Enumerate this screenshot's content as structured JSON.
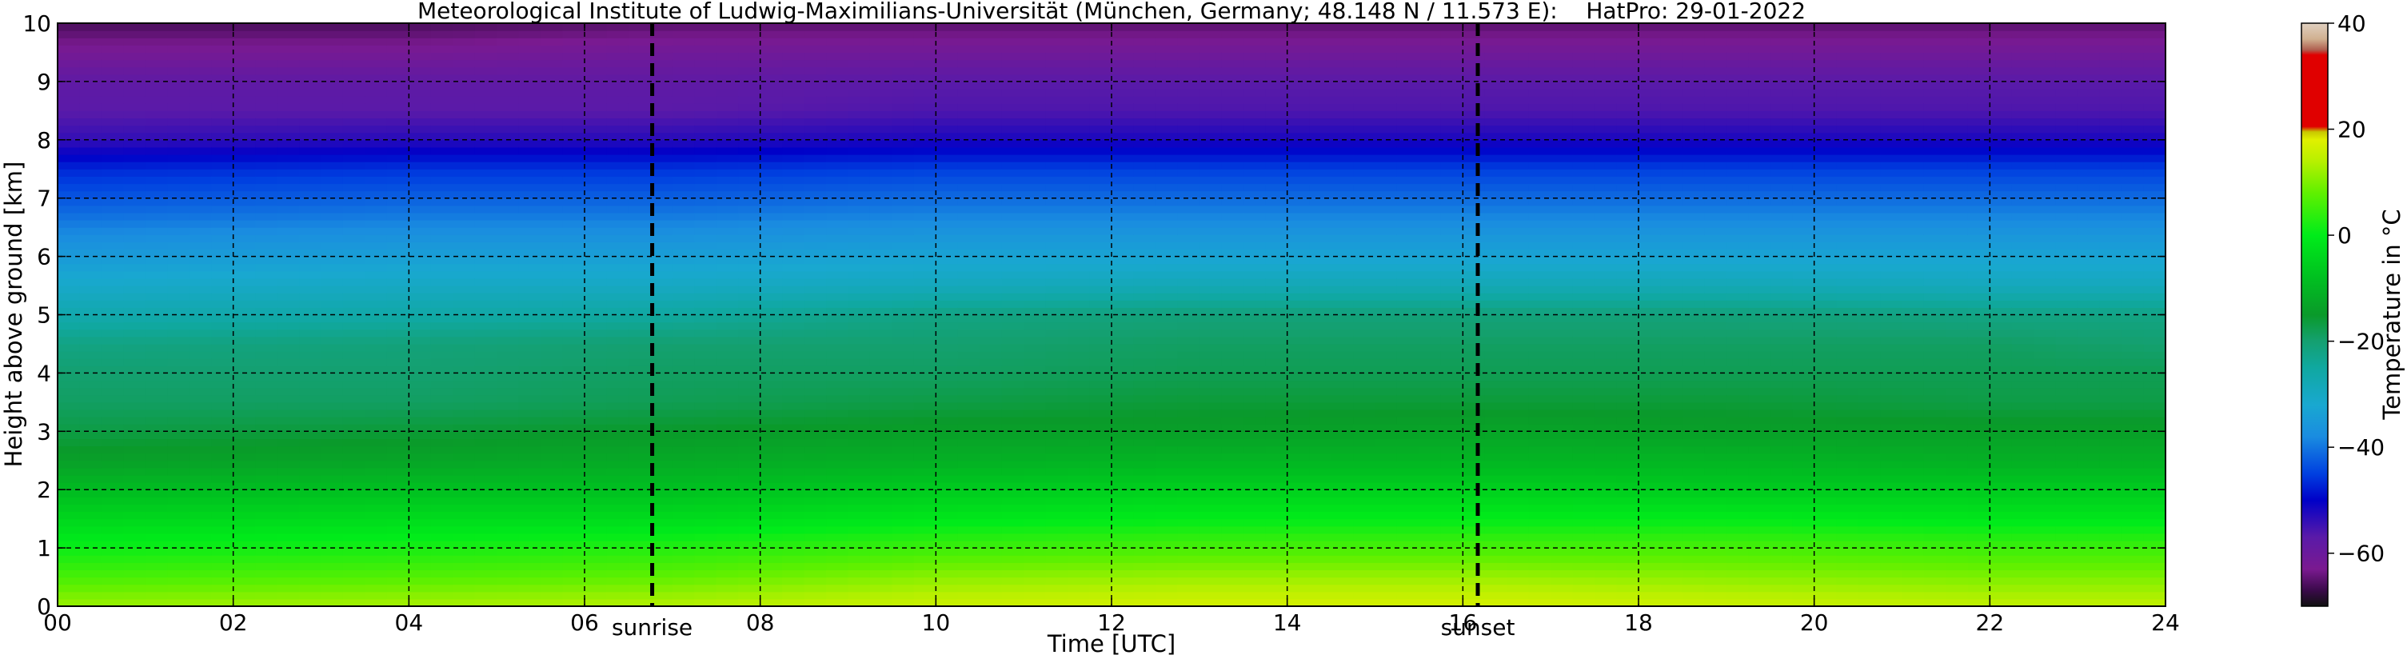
{
  "chart_data": {
    "type": "heatmap",
    "title": "Meteorological Institute of Ludwig-Maximilians-Universität (München, Germany; 48.148 N / 11.573 E):    HatPro: 29-01-2022",
    "xlabel": "Time [UTC]",
    "ylabel": "Height above ground [km]",
    "xlim": [
      0,
      24
    ],
    "ylim": [
      0,
      10
    ],
    "x_ticks": [
      0,
      2,
      4,
      6,
      8,
      10,
      12,
      14,
      16,
      18,
      20,
      22,
      24
    ],
    "x_tick_labels": [
      "00",
      "02",
      "04",
      "06",
      "08",
      "10",
      "12",
      "14",
      "16",
      "18",
      "20",
      "22",
      "24"
    ],
    "y_ticks": [
      0,
      1,
      2,
      3,
      4,
      5,
      6,
      7,
      8,
      9,
      10
    ],
    "y_tick_labels": [
      "0",
      "1",
      "2",
      "3",
      "4",
      "5",
      "6",
      "7",
      "8",
      "9",
      "10"
    ],
    "grid": true,
    "events": [
      {
        "label": "sunrise",
        "time_utc": 6.77
      },
      {
        "label": "sunset",
        "time_utc": 16.17
      }
    ],
    "colorbar": {
      "label": "Temperature in °C",
      "range": [
        -70,
        40
      ],
      "ticks": [
        40,
        20,
        0,
        -20,
        -40,
        -60
      ],
      "tick_labels": [
        "40",
        "20",
        "0",
        "−20",
        "−40",
        "−60"
      ],
      "stops": [
        {
          "value": -70,
          "color": "#101010"
        },
        {
          "value": -67,
          "color": "#3a0a4a"
        },
        {
          "value": -63,
          "color": "#7a1a90"
        },
        {
          "value": -57,
          "color": "#5a1aa8"
        },
        {
          "value": -50,
          "color": "#0000c8"
        },
        {
          "value": -45,
          "color": "#0040e0"
        },
        {
          "value": -38,
          "color": "#1a8ce0"
        },
        {
          "value": -32,
          "color": "#19a8d0"
        },
        {
          "value": -25,
          "color": "#10a8a0"
        },
        {
          "value": -20,
          "color": "#14a070"
        },
        {
          "value": -15,
          "color": "#0a9a2a"
        },
        {
          "value": -8,
          "color": "#00c020"
        },
        {
          "value": 0,
          "color": "#00ec1a"
        },
        {
          "value": 8,
          "color": "#60f000"
        },
        {
          "value": 14,
          "color": "#b8f000"
        },
        {
          "value": 18,
          "color": "#e0f000"
        },
        {
          "value": 19.5,
          "color": "#c8c800"
        },
        {
          "value": 20.5,
          "color": "#e00000"
        },
        {
          "value": 34,
          "color": "#e00000"
        },
        {
          "value": 35,
          "color": "#b06050"
        },
        {
          "value": 37,
          "color": "#d0b090"
        },
        {
          "value": 40,
          "color": "#e0d0c0"
        }
      ]
    },
    "temperature_profiles": {
      "heights_km": [
        0,
        0.5,
        1,
        1.5,
        2,
        2.5,
        3,
        3.5,
        4,
        4.5,
        5,
        5.5,
        6,
        6.5,
        7,
        7.5,
        8,
        8.5,
        9,
        9.5,
        10
      ],
      "times_utc": [
        0,
        4,
        7,
        10,
        13,
        16.5,
        19,
        22,
        24
      ],
      "values_c": [
        [
          12,
          6,
          1,
          -4,
          -9,
          -14,
          -17,
          -19,
          -20,
          -22,
          -27,
          -31,
          -35,
          -39,
          -43,
          -47,
          -54,
          -57,
          -58,
          -62,
          -66
        ],
        [
          13,
          7,
          2,
          -3,
          -8,
          -13,
          -16,
          -19,
          -20,
          -21,
          -26,
          -30,
          -34,
          -38,
          -42,
          -46,
          -53,
          -57,
          -58,
          -62,
          -66
        ],
        [
          14,
          8,
          3,
          -3,
          -8,
          -12,
          -15,
          -18,
          -19,
          -20,
          -25,
          -30,
          -34,
          -38,
          -42,
          -46,
          -53,
          -57,
          -58,
          -61,
          -65
        ],
        [
          16,
          11,
          5,
          -1,
          -6,
          -11,
          -14,
          -17,
          -19,
          -20,
          -22,
          -29,
          -33,
          -37,
          -41,
          -45,
          -52,
          -56,
          -57,
          -61,
          -65
        ],
        [
          17,
          12,
          6,
          0,
          -5,
          -10,
          -14,
          -16,
          -18,
          -19,
          -21,
          -28,
          -33,
          -37,
          -41,
          -45,
          -52,
          -56,
          -57,
          -61,
          -65
        ],
        [
          17,
          12,
          6,
          0,
          -5,
          -10,
          -13,
          -16,
          -18,
          -19,
          -21,
          -28,
          -33,
          -37,
          -41,
          -45,
          -52,
          -56,
          -57,
          -61,
          -65
        ],
        [
          16,
          11,
          6,
          0,
          -6,
          -10,
          -14,
          -16,
          -18,
          -19,
          -21,
          -28,
          -33,
          -37,
          -41,
          -45,
          -52,
          -56,
          -57,
          -61,
          -65
        ],
        [
          15,
          10,
          5,
          -1,
          -6,
          -11,
          -14,
          -17,
          -18,
          -19,
          -22,
          -29,
          -33,
          -37,
          -41,
          -45,
          -52,
          -56,
          -57,
          -61,
          -65
        ],
        [
          15,
          10,
          5,
          -1,
          -6,
          -11,
          -14,
          -17,
          -18,
          -20,
          -22,
          -29,
          -33,
          -37,
          -41,
          -45,
          -52,
          -56,
          -57,
          -61,
          -65
        ]
      ]
    }
  }
}
